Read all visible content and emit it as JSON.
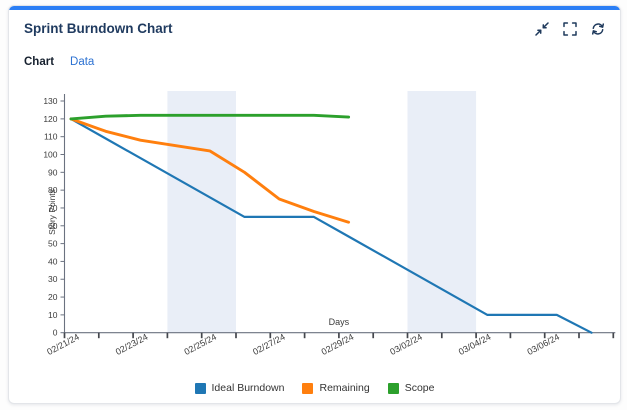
{
  "card": {
    "title": "Sprint Burndown Chart",
    "accent_color": "#2b7ef5",
    "toolbar_icons": [
      "collapse",
      "fullscreen",
      "refresh"
    ]
  },
  "tabs": {
    "chart": "Chart",
    "data": "Data"
  },
  "chart_data": {
    "type": "line",
    "title": "Sprint Burndown Chart",
    "xlabel": "Days",
    "ylabel": "Story Points",
    "ylim": [
      0,
      130
    ],
    "y_tick_step": 10,
    "grid": false,
    "legend_position": "bottom",
    "x_dates": [
      "02/21/24",
      "02/22/24",
      "02/23/24",
      "02/24/24",
      "02/25/24",
      "02/26/24",
      "02/27/24",
      "02/28/24",
      "02/29/24",
      "03/01/24",
      "03/02/24",
      "03/03/24",
      "03/04/24",
      "03/05/24",
      "03/06/24",
      "03/07/24",
      "03/08/24"
    ],
    "x_tick_labels": [
      "02/21/24",
      "02/23/24",
      "02/25/24",
      "02/27/24",
      "02/29/24",
      "03/02/24",
      "03/04/24",
      "03/06/24"
    ],
    "weekend_bands": [
      {
        "from": "02/24/24",
        "to": "02/26/24"
      },
      {
        "from": "03/02/24",
        "to": "03/04/24"
      }
    ],
    "band_color": "#e9eef7",
    "axis_color": "#6b7280",
    "tick_color": "#44474d",
    "text_color": "#3b3b3b",
    "series": [
      {
        "name": "Ideal Burndown",
        "color": "#1f77b4",
        "values": [
          120,
          109,
          98,
          87,
          76,
          65,
          65,
          65,
          54,
          43,
          32,
          21,
          10,
          10,
          10,
          0
        ]
      },
      {
        "name": "Remaining",
        "color": "#ff7f0e",
        "values": [
          120,
          113,
          108,
          105,
          102,
          90,
          75,
          68,
          62
        ]
      },
      {
        "name": "Scope",
        "color": "#2ca02c",
        "values": [
          120,
          121.5,
          122,
          122,
          122,
          122,
          122,
          122,
          121
        ]
      }
    ]
  }
}
